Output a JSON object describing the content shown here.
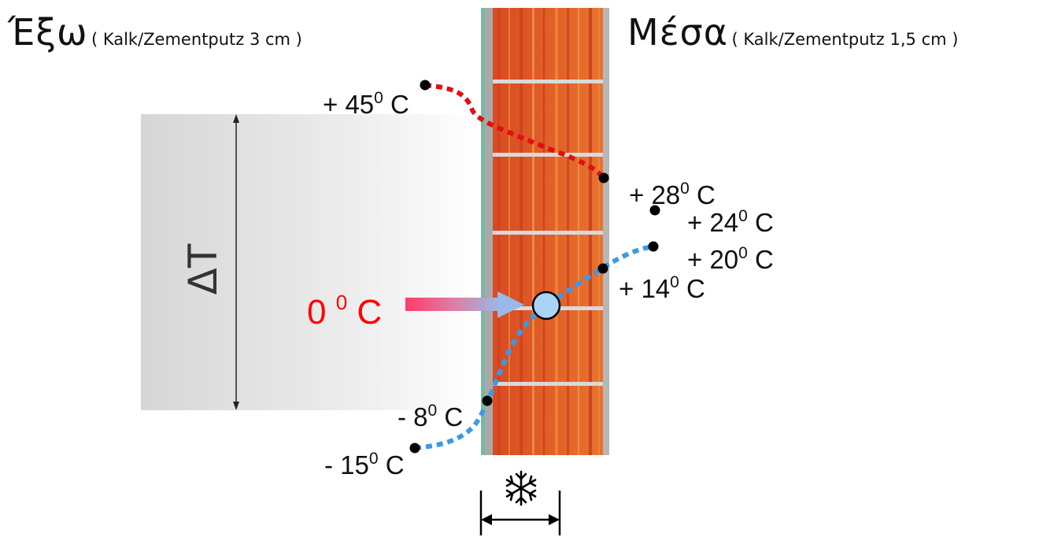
{
  "header": {
    "outside_title": "Έξω",
    "outside_note": "( Kalk/Zementputz 3 cm )",
    "inside_title": "Μέσα",
    "inside_note": "( Kalk/Zementputz 1,5 cm )"
  },
  "delta_label": "ΔT",
  "dew_point": {
    "value": "0",
    "degree": "0",
    "unit": "C"
  },
  "temperatures": {
    "t_plus45": {
      "prefix": "+ 45",
      "degree": "0",
      "unit": " C"
    },
    "t_plus28": {
      "prefix": "+ 28",
      "degree": "0",
      "unit": " C"
    },
    "t_plus24": {
      "prefix": "+ 24",
      "degree": "0",
      "unit": " C"
    },
    "t_plus20": {
      "prefix": "+ 20",
      "degree": "0",
      "unit": " C"
    },
    "t_plus14": {
      "prefix": "+ 14",
      "degree": "0",
      "unit": " C"
    },
    "t_minus8": {
      "prefix": "- 8",
      "degree": "0",
      "unit": " C"
    },
    "t_minus15": {
      "prefix": "- 15",
      "degree": "0",
      "unit": " C"
    }
  },
  "colors": {
    "warm_line": "#e01010",
    "cold_line": "#3a9ae8",
    "dew_point_fill": "#a9d4f7",
    "brick_base": "#e4632c",
    "arrow_text": "#ff0000"
  },
  "icons": {
    "frost_zone": "snowflake-icon"
  }
}
